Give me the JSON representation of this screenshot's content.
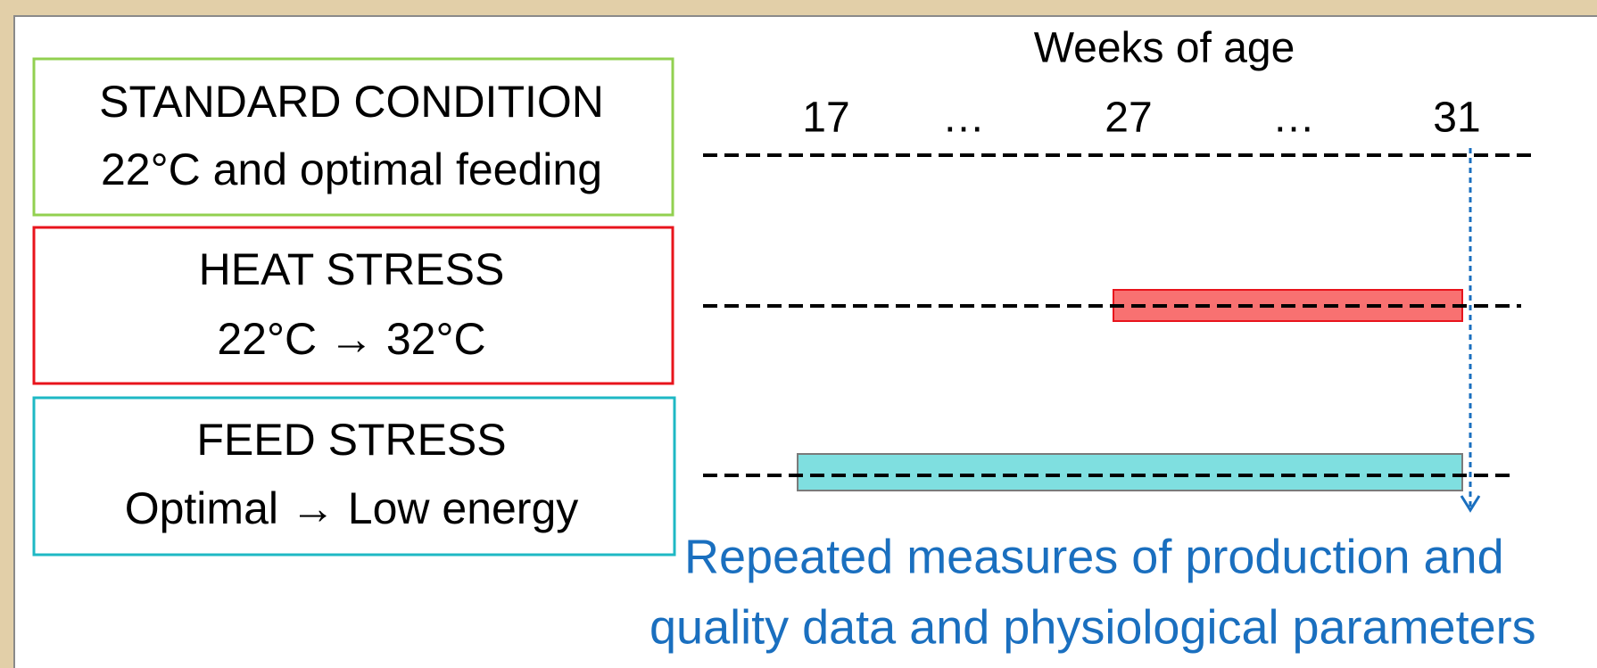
{
  "conditions": [
    {
      "title": "STANDARD CONDITION",
      "subtitle": "22°C and optimal feeding"
    },
    {
      "title": "HEAT STRESS",
      "subtitle": "22°C → 32°C"
    },
    {
      "title": "FEED STRESS",
      "subtitle": "Optimal → Low energy"
    }
  ],
  "timeline": {
    "title": "Weeks of age",
    "ticks": [
      "17",
      "…",
      "27",
      "…",
      "31"
    ]
  },
  "note": [
    "Repeated measures of production and",
    "quality data and physiological parameters"
  ]
}
